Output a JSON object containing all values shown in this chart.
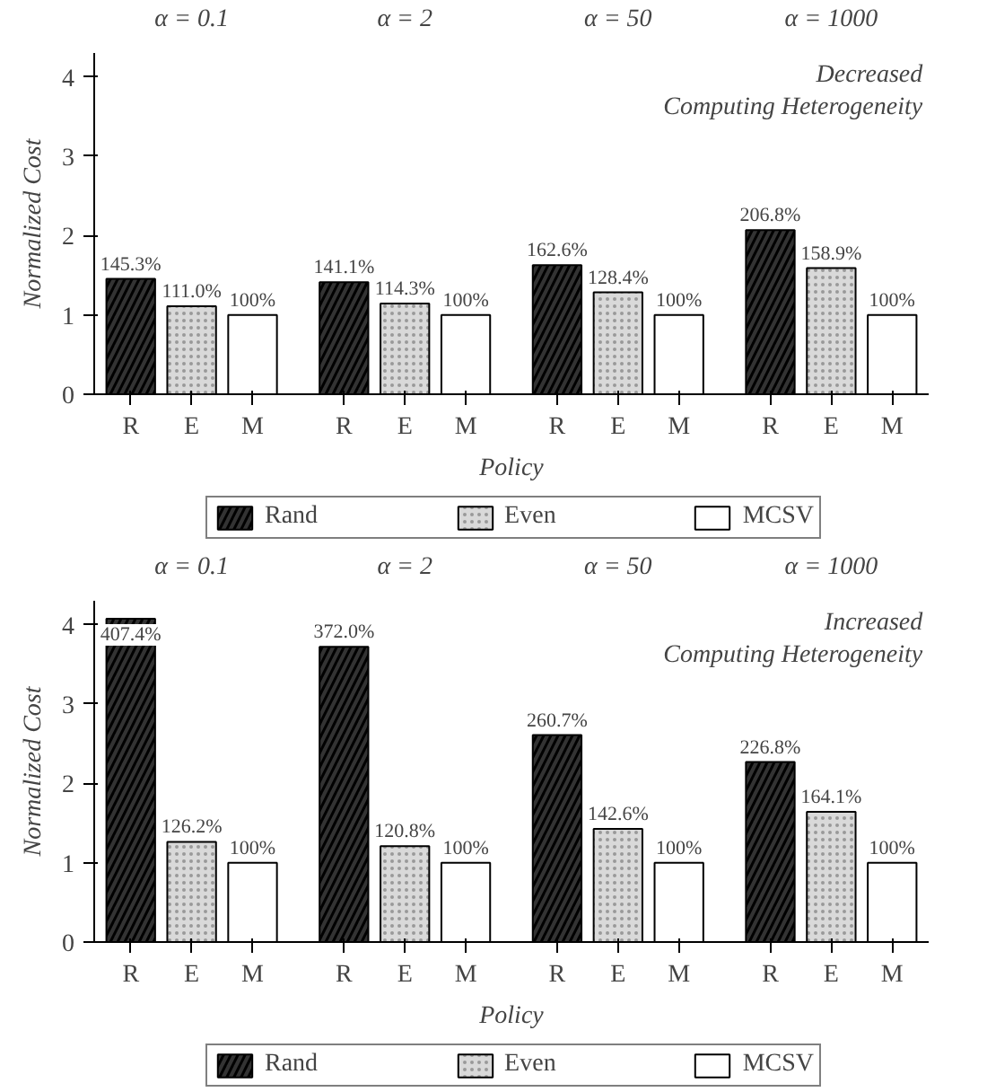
{
  "chart_data": [
    {
      "type": "bar",
      "title": "Decreased\nComputing Heterogeneity",
      "xlabel": "Policy",
      "ylabel": "Normalized Cost",
      "categories": [
        "R",
        "E",
        "M",
        "R",
        "E",
        "M",
        "R",
        "E",
        "M",
        "R",
        "E",
        "M"
      ],
      "series": [
        {
          "name": "Rand",
          "color": "#333333",
          "values": [
            1.453,
            null,
            null,
            1.411,
            null,
            null,
            1.626,
            null,
            null,
            2.068,
            null,
            null
          ],
          "value_labels": [
            "145.3%",
            null,
            null,
            "141.1%",
            null,
            null,
            "162.6%",
            null,
            null,
            "206.8%",
            null,
            null
          ]
        },
        {
          "name": "Even",
          "color": "#d9d9d9",
          "values": [
            null,
            1.11,
            null,
            null,
            1.143,
            null,
            null,
            1.284,
            null,
            null,
            1.589,
            null
          ],
          "value_labels": [
            null,
            "111.0%",
            null,
            null,
            "114.3%",
            null,
            null,
            "128.4%",
            null,
            null,
            "158.9%",
            null
          ]
        },
        {
          "name": "MCSV",
          "color": "#ffffff",
          "values": [
            null,
            null,
            1.0,
            null,
            null,
            1.0,
            null,
            null,
            1.0,
            null,
            null,
            1.0
          ],
          "value_labels": [
            null,
            null,
            "100%",
            null,
            null,
            "100%",
            null,
            null,
            "100%",
            null,
            null,
            "100%"
          ]
        }
      ],
      "annotations": [
        "α = 0.1",
        "α = 2",
        "α = 50",
        "α = 1000"
      ],
      "ylim": [
        0,
        4.3
      ],
      "yticks": [
        0,
        1,
        2,
        3,
        4
      ],
      "grid": false,
      "legend": "bottom"
    },
    {
      "type": "bar",
      "title": "Increased\nComputing Heterogeneity",
      "xlabel": "Policy",
      "ylabel": "Normalized Cost",
      "categories": [
        "R",
        "E",
        "M",
        "R",
        "E",
        "M",
        "R",
        "E",
        "M",
        "R",
        "E",
        "M"
      ],
      "series": [
        {
          "name": "Rand",
          "color": "#333333",
          "values": [
            4.074,
            null,
            null,
            3.72,
            null,
            null,
            2.607,
            null,
            null,
            2.268,
            null,
            null
          ],
          "value_labels": [
            "407.4%",
            null,
            null,
            "372.0%",
            null,
            null,
            "260.7%",
            null,
            null,
            "226.8%",
            null,
            null
          ]
        },
        {
          "name": "Even",
          "color": "#d9d9d9",
          "values": [
            null,
            1.262,
            null,
            null,
            1.208,
            null,
            null,
            1.426,
            null,
            null,
            1.641,
            null
          ],
          "value_labels": [
            null,
            "126.2%",
            null,
            null,
            "120.8%",
            null,
            null,
            "142.6%",
            null,
            null,
            "164.1%",
            null
          ]
        },
        {
          "name": "MCSV",
          "color": "#ffffff",
          "values": [
            null,
            null,
            1.0,
            null,
            null,
            1.0,
            null,
            null,
            1.0,
            null,
            null,
            1.0
          ],
          "value_labels": [
            null,
            null,
            "100%",
            null,
            null,
            "100%",
            null,
            null,
            "100%",
            null,
            null,
            "100%"
          ]
        }
      ],
      "annotations": [
        "α = 0.1",
        "α = 2",
        "α = 50",
        "α = 1000"
      ],
      "ylim": [
        0,
        4.3
      ],
      "yticks": [
        0,
        1,
        2,
        3,
        4
      ],
      "grid": false,
      "legend": "bottom"
    }
  ]
}
